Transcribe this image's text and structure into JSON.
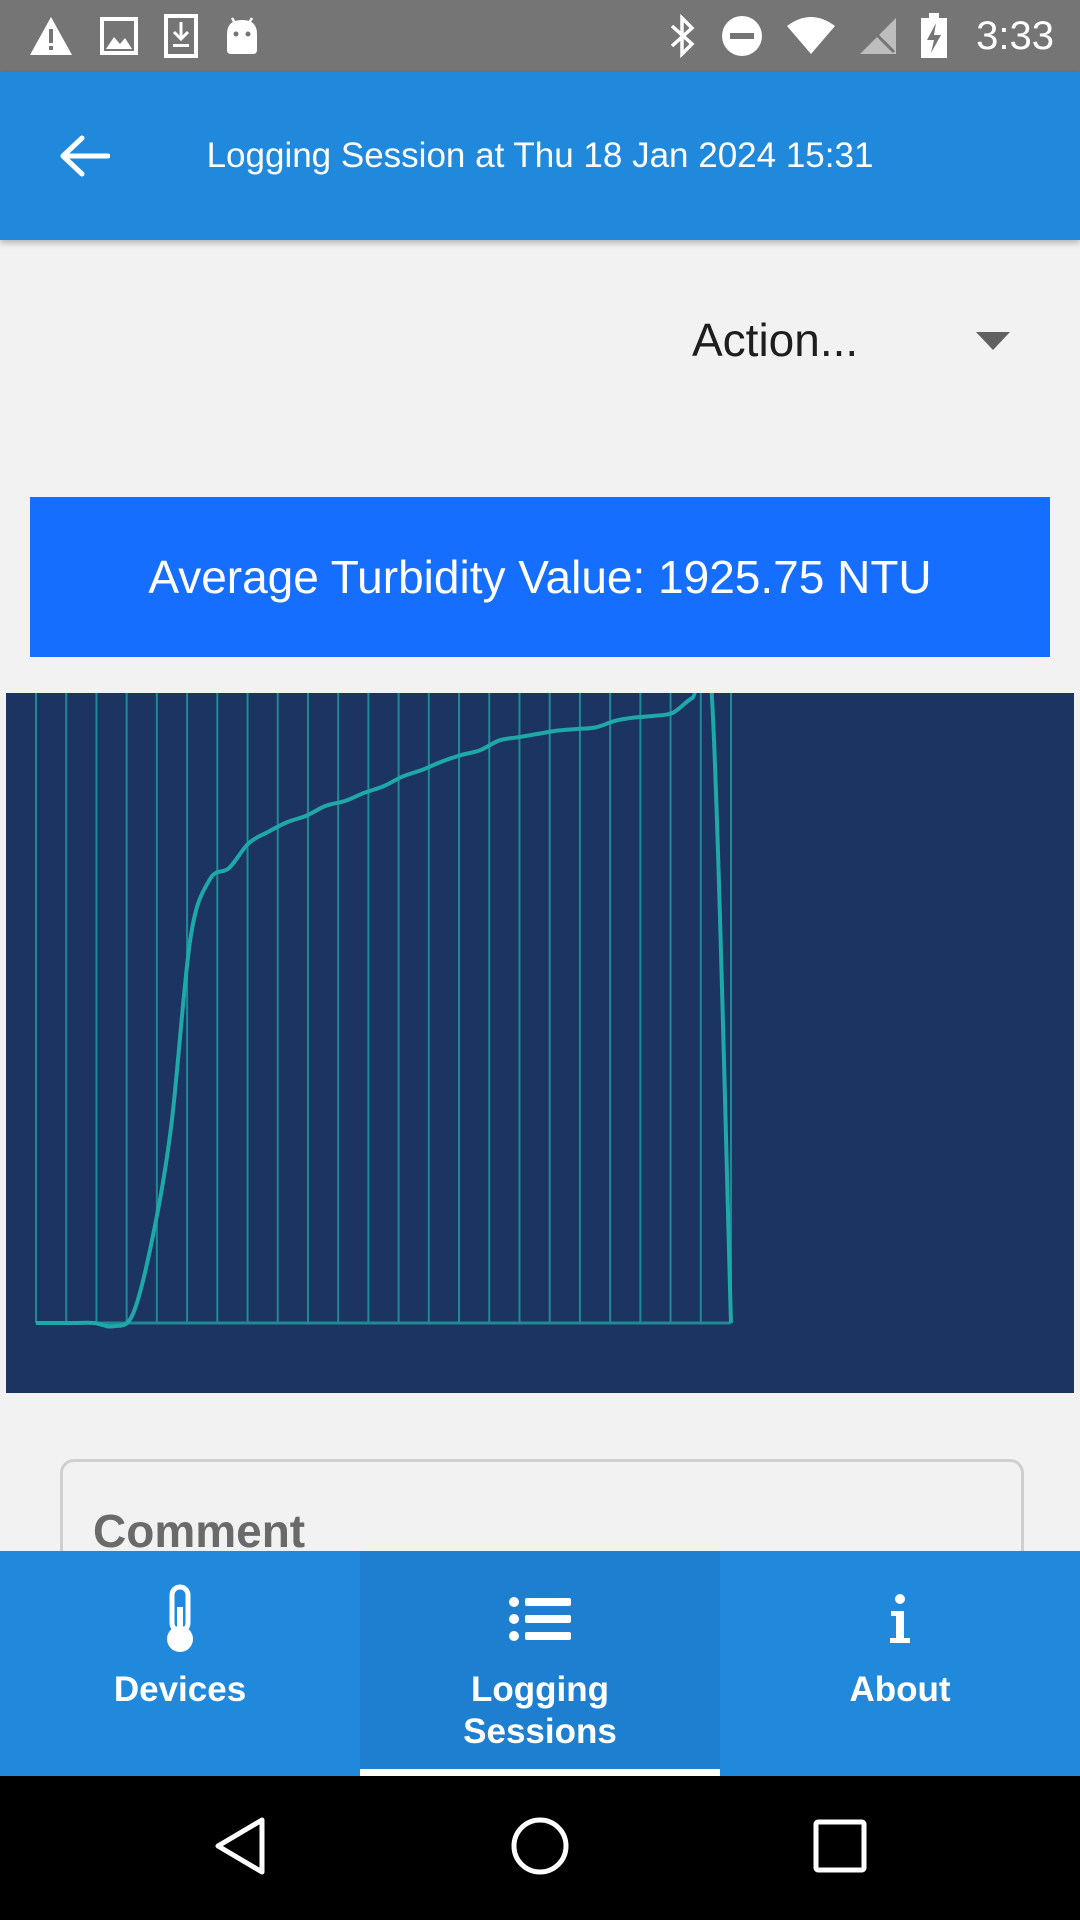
{
  "status_bar": {
    "time": "3:33",
    "left_icons": [
      "warning-icon",
      "image-icon",
      "download-icon",
      "android-icon"
    ],
    "right_icons": [
      "bluetooth-icon",
      "do-not-disturb-icon",
      "wifi-icon",
      "no-sim-icon",
      "battery-charging-icon"
    ]
  },
  "app_bar": {
    "title": "Logging Session at Thu 18 Jan 2024 15:31",
    "back_icon": "arrow-back-icon"
  },
  "action_dropdown": {
    "selected": "Action..."
  },
  "summary": {
    "average_text": "Average Turbidity Value: 1925.75 NTU"
  },
  "colors": {
    "app_bar": "#2189dc",
    "banner": "#166eff",
    "chart_bg": "#1b3461",
    "line": "#1fa8a8",
    "grid": "#1f8a94"
  },
  "chart_data": {
    "type": "line",
    "title": "",
    "xlabel": "",
    "ylabel": "",
    "grid": true,
    "series": [
      {
        "values": [
          0,
          0,
          0,
          0,
          -2,
          5,
          50,
          120,
          235,
          271,
          278,
          293,
          300,
          306,
          310,
          316,
          319,
          324,
          328,
          334,
          338,
          343,
          347,
          350,
          356,
          358,
          360,
          362,
          363,
          364,
          368,
          370,
          371,
          373,
          382,
          385,
          0
        ]
      }
    ],
    "x": [
      0,
      1,
      2,
      3,
      4,
      5,
      6,
      7,
      8,
      9,
      10,
      11,
      12,
      13,
      14,
      15,
      16,
      17,
      18,
      19,
      20,
      21,
      22,
      23,
      24,
      25,
      26,
      27,
      28,
      29,
      30,
      31,
      32,
      33,
      34,
      35,
      36
    ],
    "xlim": [
      0,
      36
    ],
    "ylim": [
      0,
      385
    ],
    "vertical_gridlines": 24
  },
  "comment": {
    "label": "Comment"
  },
  "bottom_nav": {
    "items": [
      {
        "label": "Devices",
        "icon": "thermometer-icon",
        "active": false
      },
      {
        "label": "Logging\nSessions",
        "icon": "list-icon",
        "active": true
      },
      {
        "label": "About",
        "icon": "info-icon",
        "active": false
      }
    ]
  },
  "system_nav": {
    "icons": [
      "back-triangle-icon",
      "home-circle-icon",
      "recents-square-icon"
    ]
  }
}
